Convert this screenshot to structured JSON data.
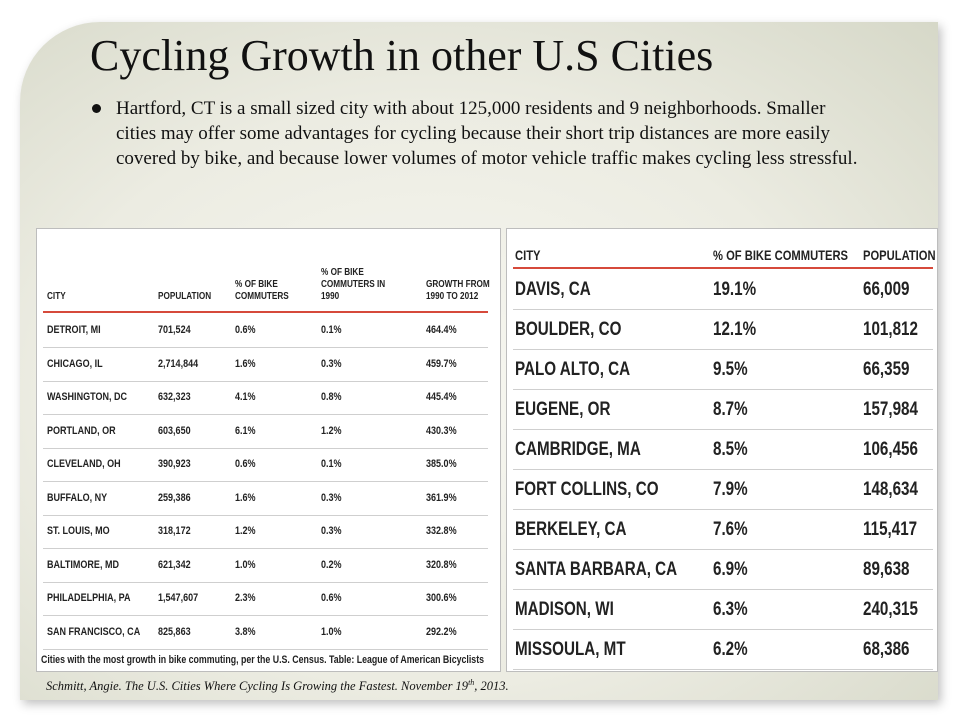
{
  "title": "Cycling Growth in other U.S Cities",
  "bullet": "Hartford, CT is a small sized city with about 125,000 residents and 9 neighborhoods. Smaller cities may offer some advantages for cycling because their short trip distances are more easily covered by bike, and because lower volumes of motor vehicle traffic makes cycling less stressful.",
  "table1": {
    "headers": [
      "CITY",
      "POPULATION",
      "% OF BIKE COMMUTERS",
      "% OF BIKE COMMUTERS IN 1990",
      "GROWTH FROM 1990 TO 2012"
    ],
    "rows": [
      [
        "DETROIT, MI",
        "701,524",
        "0.6%",
        "0.1%",
        "464.4%"
      ],
      [
        "CHICAGO, IL",
        "2,714,844",
        "1.6%",
        "0.3%",
        "459.7%"
      ],
      [
        "WASHINGTON, DC",
        "632,323",
        "4.1%",
        "0.8%",
        "445.4%"
      ],
      [
        "PORTLAND, OR",
        "603,650",
        "6.1%",
        "1.2%",
        "430.3%"
      ],
      [
        "CLEVELAND, OH",
        "390,923",
        "0.6%",
        "0.1%",
        "385.0%"
      ],
      [
        "BUFFALO, NY",
        "259,386",
        "1.6%",
        "0.3%",
        "361.9%"
      ],
      [
        "ST. LOUIS, MO",
        "318,172",
        "1.2%",
        "0.3%",
        "332.8%"
      ],
      [
        "BALTIMORE, MD",
        "621,342",
        "1.0%",
        "0.2%",
        "320.8%"
      ],
      [
        "PHILADELPHIA, PA",
        "1,547,607",
        "2.3%",
        "0.6%",
        "300.6%"
      ],
      [
        "SAN FRANCISCO, CA",
        "825,863",
        "3.8%",
        "1.0%",
        "292.2%"
      ]
    ],
    "caption": "Cities with the most growth in bike commuting, per the U.S. Census. Table: League of American Bicyclists"
  },
  "table2": {
    "headers": [
      "CITY",
      "% OF BIKE COMMUTERS",
      "POPULATION"
    ],
    "rows": [
      [
        "DAVIS, CA",
        "19.1%",
        "66,009"
      ],
      [
        "BOULDER, CO",
        "12.1%",
        "101,812"
      ],
      [
        "PALO ALTO, CA",
        "9.5%",
        "66,359"
      ],
      [
        "EUGENE, OR",
        "8.7%",
        "157,984"
      ],
      [
        "CAMBRIDGE, MA",
        "8.5%",
        "106,456"
      ],
      [
        "FORT COLLINS, CO",
        "7.9%",
        "148,634"
      ],
      [
        "BERKELEY, CA",
        "7.6%",
        "115,417"
      ],
      [
        "SANTA BARBARA, CA",
        "6.9%",
        "89,638"
      ],
      [
        "MADISON, WI",
        "6.3%",
        "240,315"
      ],
      [
        "MISSOULA, MT",
        "6.2%",
        "68,386"
      ]
    ]
  },
  "citation": {
    "text": "Schmitt, Angie. The U.S. Cities Where Cycling Is Growing the Fastest. November 19",
    "sup": "th",
    "tail": ", 2013."
  }
}
